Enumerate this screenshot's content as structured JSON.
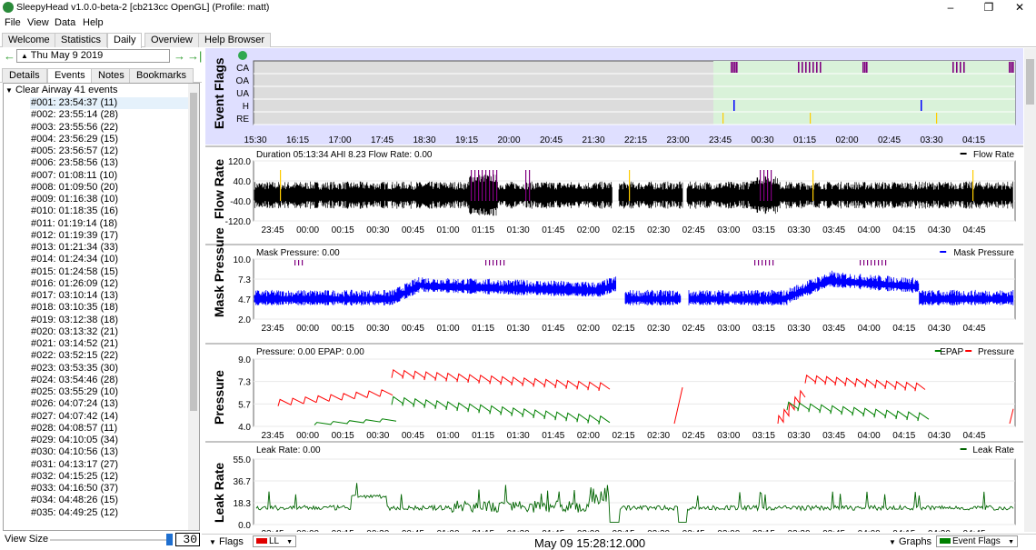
{
  "window": {
    "title": "SleepyHead v1.0.0-beta-2 [cb213cc OpenGL] (Profile: matt)"
  },
  "menu": [
    "File",
    "View",
    "Data",
    "Help"
  ],
  "tabs": [
    {
      "label": "Welcome",
      "active": false
    },
    {
      "label": "Statistics",
      "active": false
    },
    {
      "label": "Daily",
      "active": true
    },
    {
      "label": "Overview",
      "active": false
    },
    {
      "label": "Help Browser",
      "active": false
    }
  ],
  "date_nav": {
    "date": "Thu May 9 2019",
    "prev_icon": "←",
    "next_icon": "→",
    "last_icon": "→|"
  },
  "subtabs": [
    {
      "label": "Details",
      "active": false
    },
    {
      "label": "Events",
      "active": true
    },
    {
      "label": "Notes",
      "active": false
    },
    {
      "label": "Bookmarks",
      "active": false
    }
  ],
  "event_group": "Clear Airway 41 events",
  "events": [
    "#001: 23:54:37 (11)",
    "#002: 23:55:14 (28)",
    "#003: 23:55:56 (22)",
    "#004: 23:56:29 (15)",
    "#005: 23:56:57 (12)",
    "#006: 23:58:56 (13)",
    "#007: 01:08:11 (10)",
    "#008: 01:09:50 (20)",
    "#009: 01:16:38 (10)",
    "#010: 01:18:35 (16)",
    "#011: 01:19:14 (18)",
    "#012: 01:19:39 (17)",
    "#013: 01:21:34 (33)",
    "#014: 01:24:34 (10)",
    "#015: 01:24:58 (15)",
    "#016: 01:26:09 (12)",
    "#017: 03:10:14 (13)",
    "#018: 03:10:35 (18)",
    "#019: 03:12:38 (18)",
    "#020: 03:13:32 (21)",
    "#021: 03:14:52 (21)",
    "#022: 03:52:15 (22)",
    "#023: 03:53:35 (30)",
    "#024: 03:54:46 (28)",
    "#025: 03:55:29 (10)",
    "#026: 04:07:24 (13)",
    "#027: 04:07:42 (14)",
    "#028: 04:08:57 (11)",
    "#029: 04:10:05 (34)",
    "#030: 04:10:56 (13)",
    "#031: 04:13:17 (27)",
    "#032: 04:15:25 (12)",
    "#033: 04:16:50 (37)",
    "#034: 04:48:26 (15)",
    "#035: 04:49:25 (12)"
  ],
  "view_size": {
    "label": "View Size",
    "value": "30"
  },
  "event_flags": {
    "title": "Event Flags",
    "rows": [
      "CA",
      "OA",
      "UA",
      "H",
      "RE"
    ],
    "time_ticks": [
      "15:30",
      "16:15",
      "17:00",
      "17:45",
      "18:30",
      "19:15",
      "20:00",
      "20:45",
      "21:30",
      "22:15",
      "23:00",
      "23:45",
      "00:30",
      "01:15",
      "02:00",
      "02:45",
      "03:30",
      "04:15"
    ]
  },
  "session_ticks": [
    "23:45",
    "00:00",
    "00:15",
    "00:30",
    "00:45",
    "01:00",
    "01:15",
    "01:30",
    "01:45",
    "02:00",
    "02:15",
    "02:30",
    "02:45",
    "03:00",
    "03:15",
    "03:30",
    "03:45",
    "04:00",
    "04:15",
    "04:30",
    "04:45"
  ],
  "graphs": [
    {
      "key": "flow",
      "title": "Flow Rate",
      "info": "Duration 05:13:34 AHI 8.23 Flow Rate: 0.00",
      "legend": [
        {
          "label": "Flow Rate",
          "color": "#000000"
        }
      ],
      "yticks": [
        "120.0",
        "40.0",
        "-40.0",
        "-120.0"
      ]
    },
    {
      "key": "mask",
      "title": "Mask Pressure",
      "info": "Mask Pressure: 0.00",
      "legend": [
        {
          "label": "Mask Pressure",
          "color": "#0000ff"
        }
      ],
      "yticks": [
        "10.0",
        "7.3",
        "4.7",
        "2.0"
      ]
    },
    {
      "key": "pressure",
      "title": "Pressure",
      "info": "Pressure: 0.00 EPAP: 0.00",
      "legend": [
        {
          "label": "EPAP",
          "color": "#008000"
        },
        {
          "label": "Pressure",
          "color": "#ff0000"
        }
      ],
      "yticks": [
        "9.0",
        "7.3",
        "5.7",
        "4.0"
      ]
    },
    {
      "key": "leak",
      "title": "Leak Rate",
      "info": "Leak Rate: 0.00",
      "legend": [
        {
          "label": "Leak Rate",
          "color": "#006400"
        }
      ],
      "yticks": [
        "55.0",
        "36.7",
        "18.3",
        "0.0"
      ]
    }
  ],
  "colors": {
    "ca_flag": "#800080",
    "h_flag": "#0000ff",
    "re_flag": "#ffcc00",
    "flag_bg": "#dfdfff",
    "chart_green": "#d9f2d9"
  },
  "bottom": {
    "flags_label": "Flags",
    "ll_label": "LL",
    "datetime": "May 09 15:28:12.000",
    "graphs_label": "Graphs",
    "event_flags_label": "Event Flags"
  }
}
